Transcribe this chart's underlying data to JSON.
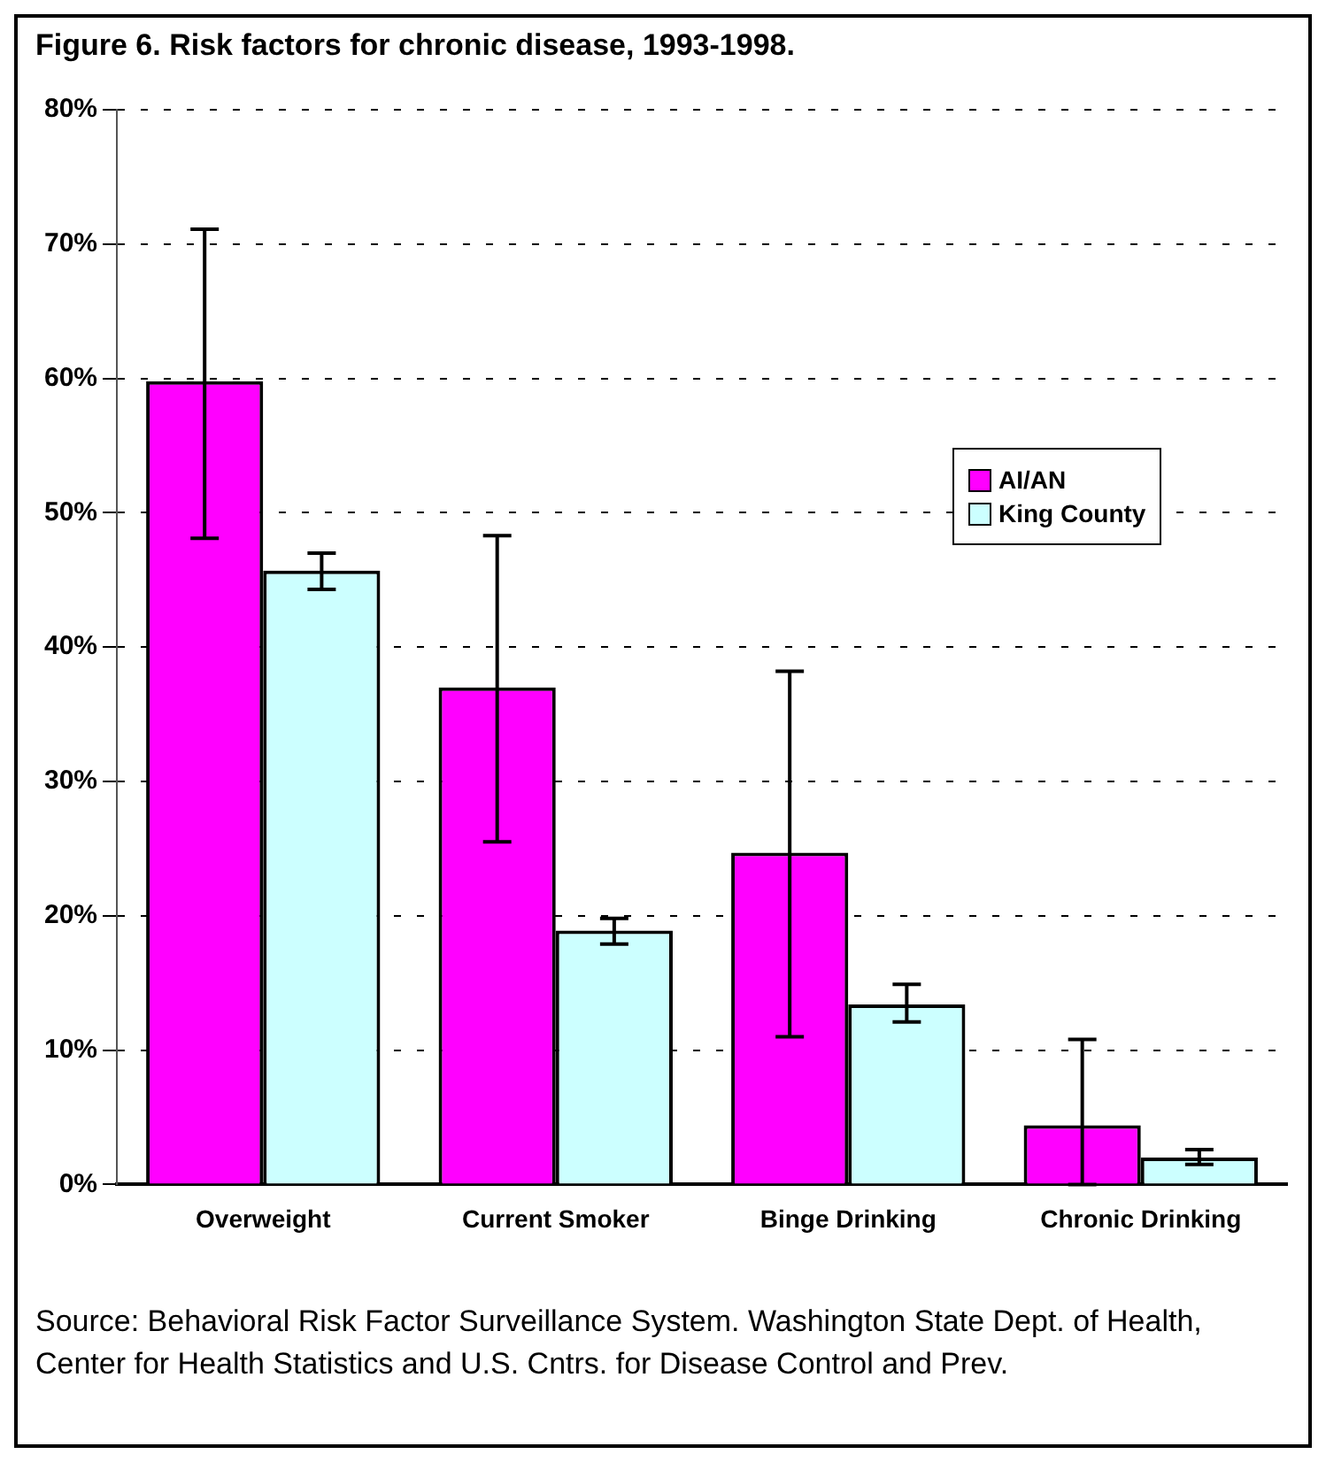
{
  "chart_data": {
    "type": "bar",
    "title": "Figure 6. Risk factors for chronic disease, 1993-1998.",
    "categories": [
      "Overweight",
      "Current Smoker",
      "Binge Drinking",
      "Chronic Drinking"
    ],
    "series": [
      {
        "name": "AI/AN",
        "color": "#ff00ff",
        "values": [
          59.8,
          37.0,
          24.7,
          4.4
        ],
        "errors": [
          [
            48.1,
            71.1
          ],
          [
            25.5,
            48.3
          ],
          [
            11.0,
            38.2
          ],
          [
            0,
            10.8
          ]
        ]
      },
      {
        "name": "King County",
        "color": "#ccffff",
        "values": [
          45.7,
          18.9,
          13.4,
          2.0
        ],
        "errors": [
          [
            44.3,
            47.0
          ],
          [
            17.9,
            19.8
          ],
          [
            12.1,
            14.9
          ],
          [
            1.5,
            2.6
          ]
        ]
      }
    ],
    "ylim": [
      0,
      80
    ],
    "yticks": [
      {
        "value": 0,
        "label": "0%"
      },
      {
        "value": 10,
        "label": "10%"
      },
      {
        "value": 20,
        "label": "20%"
      },
      {
        "value": 30,
        "label": "30%"
      },
      {
        "value": 40,
        "label": "40%"
      },
      {
        "value": 50,
        "label": "50%"
      },
      {
        "value": 60,
        "label": "60%"
      },
      {
        "value": 70,
        "label": "70%"
      },
      {
        "value": 80,
        "label": "80%"
      }
    ],
    "grid": "y",
    "legend": "right",
    "annotations": [
      "Source: Behavioral Risk Factor Surveillance System. Washington State Dept. of Health, Center for Health Statistics and U.S. Cntrs. for Disease Control and Prev."
    ]
  }
}
